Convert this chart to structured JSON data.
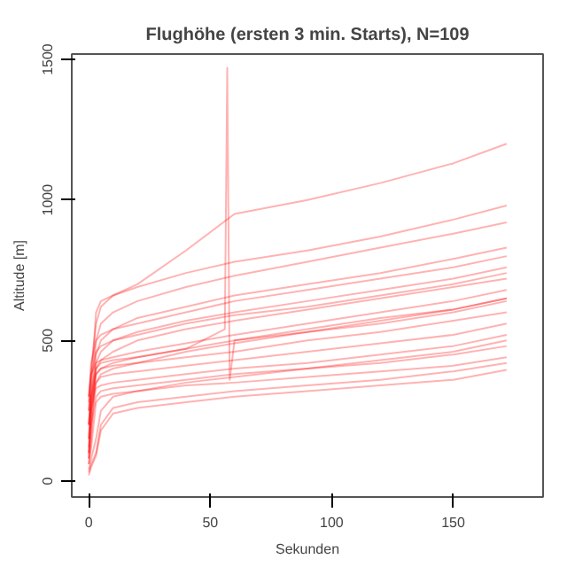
{
  "chart_data": {
    "type": "line",
    "title": "Flughöhe (ersten 3 min. Starts), N=109",
    "xlabel": "Sekunden",
    "ylabel": "Altitude [m]",
    "x": [
      0,
      1,
      3,
      5,
      10,
      20,
      40,
      60,
      90,
      120,
      150,
      172
    ],
    "xlim": [
      -7,
      187
    ],
    "ylim": [
      -57,
      1519
    ],
    "xticks": [
      0,
      50,
      100,
      150
    ],
    "yticks": [
      0,
      500,
      1000,
      1500
    ],
    "grid": false,
    "marker": "none",
    "line_style": "solid",
    "series": [
      {
        "color": "#ff0000",
        "values": [
          250,
          400,
          560,
          620,
          660,
          700,
          820,
          950,
          1000,
          1060,
          1130,
          1200
        ]
      },
      {
        "color": "#ff0000",
        "values": [
          200,
          350,
          600,
          640,
          660,
          690,
          740,
          780,
          820,
          870,
          930,
          980
        ]
      },
      {
        "color": "#ff0000",
        "values": [
          150,
          300,
          500,
          560,
          600,
          640,
          690,
          730,
          780,
          830,
          880,
          920
        ]
      },
      {
        "color": "#ff0000",
        "values": [
          100,
          250,
          450,
          500,
          540,
          580,
          620,
          660,
          700,
          740,
          790,
          830
        ]
      },
      {
        "color": "#ff0000",
        "values": [
          80,
          200,
          420,
          460,
          500,
          530,
          570,
          600,
          640,
          680,
          720,
          760
        ]
      },
      {
        "color": "#ff0000",
        "values": [
          60,
          150,
          400,
          430,
          460,
          500,
          540,
          570,
          610,
          650,
          690,
          720
        ]
      },
      {
        "color": "#ff0000",
        "values": [
          300,
          380,
          420,
          430,
          440,
          460,
          490,
          520,
          560,
          600,
          640,
          680
        ]
      },
      {
        "color": "#ff0000",
        "values": [
          250,
          330,
          400,
          420,
          430,
          440,
          470,
          500,
          540,
          580,
          610,
          650
        ]
      },
      {
        "color": "#ff0000",
        "values": [
          200,
          300,
          380,
          400,
          410,
          420,
          440,
          460,
          500,
          530,
          570,
          600
        ]
      },
      {
        "color": "#ff0000",
        "values": [
          150,
          280,
          350,
          370,
          380,
          390,
          410,
          430,
          460,
          490,
          520,
          560
        ]
      },
      {
        "color": "#ff0000",
        "values": [
          100,
          250,
          330,
          340,
          350,
          360,
          380,
          400,
          420,
          450,
          480,
          520
        ]
      },
      {
        "color": "#ff0000",
        "values": [
          80,
          200,
          300,
          320,
          330,
          340,
          360,
          380,
          400,
          420,
          450,
          480
        ]
      },
      {
        "color": "#ff0000",
        "values": [
          60,
          120,
          280,
          300,
          310,
          320,
          340,
          350,
          370,
          390,
          410,
          440
        ]
      },
      {
        "color": "#ff0000",
        "values": [
          30,
          60,
          100,
          200,
          260,
          280,
          300,
          320,
          340,
          360,
          390,
          420
        ]
      },
      {
        "color": "#ff0000",
        "values": [
          40,
          80,
          150,
          250,
          300,
          320,
          350,
          370,
          400,
          430,
          460,
          500
        ]
      },
      {
        "color": "#ff0000",
        "values": [
          20,
          50,
          90,
          180,
          240,
          260,
          280,
          300,
          320,
          340,
          360,
          395
        ]
      },
      {
        "color": "#ff0000",
        "values": [
          300,
          420,
          500,
          520,
          540,
          560,
          600,
          640,
          680,
          720,
          760,
          800
        ]
      },
      {
        "color": "#ff0000",
        "values": [
          280,
          380,
          460,
          480,
          500,
          520,
          560,
          590,
          620,
          660,
          700,
          740
        ]
      },
      {
        "color": "#ff0000",
        "values": [
          120,
          260,
          350,
          380,
          400,
          420,
          460,
          490,
          530,
          560,
          600,
          640
        ]
      },
      {
        "color": "#ff0000",
        "x": [
          0,
          1,
          3,
          5,
          10,
          20,
          40,
          56,
          57,
          58,
          60,
          90,
          120,
          150,
          172
        ],
        "values": [
          200,
          300,
          380,
          400,
          420,
          440,
          470,
          540,
          1470,
          360,
          500,
          530,
          570,
          610,
          650
        ]
      }
    ]
  }
}
